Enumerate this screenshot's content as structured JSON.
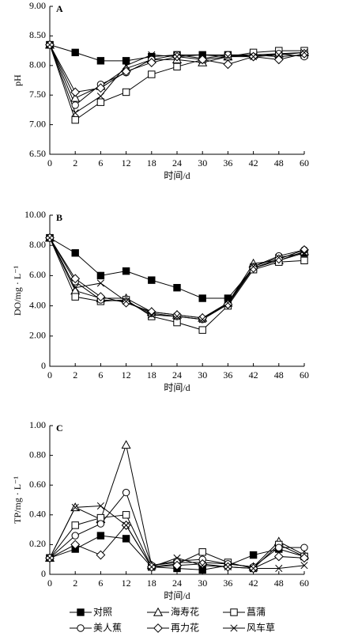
{
  "legend": [
    {
      "name": "对照",
      "marker": "square-filled"
    },
    {
      "name": "海寿花",
      "marker": "triangle"
    },
    {
      "name": "菖蒲",
      "marker": "square"
    },
    {
      "name": "美人蕉",
      "marker": "circle"
    },
    {
      "name": "再力花",
      "marker": "diamond"
    },
    {
      "name": "风车草",
      "marker": "cross"
    }
  ],
  "chart_data": [
    {
      "type": "line",
      "label": "A",
      "y_label": "pH",
      "x_label": "时间/d",
      "categories": [
        "0",
        "2",
        "6",
        "12",
        "18",
        "24",
        "30",
        "36",
        "42",
        "48",
        "60"
      ],
      "ylim": [
        6.5,
        9.0
      ],
      "yticks": [
        {
          "value": 6.5,
          "label": "6.50"
        },
        {
          "value": 7,
          "label": "7.00"
        },
        {
          "value": 7.5,
          "label": "7.50"
        },
        {
          "value": 8,
          "label": "8.00"
        },
        {
          "value": 8.5,
          "label": "8.50"
        },
        {
          "value": 9,
          "label": "9.00"
        }
      ],
      "series": [
        {
          "values": [
            8.35,
            8.22,
            8.08,
            8.08,
            8.15,
            8.18,
            8.18,
            8.18,
            8.18,
            8.15,
            8.18
          ]
        },
        {
          "values": [
            8.35,
            7.45,
            7.65,
            7.95,
            8.1,
            8.1,
            8.05,
            8.15,
            8.18,
            8.2,
            8.22
          ]
        },
        {
          "values": [
            8.35,
            7.08,
            7.38,
            7.55,
            7.85,
            7.98,
            8.1,
            8.15,
            8.22,
            8.25,
            8.25
          ]
        },
        {
          "values": [
            8.35,
            7.33,
            7.68,
            7.88,
            8.1,
            8.18,
            8.12,
            8.18,
            8.15,
            8.2,
            8.15
          ]
        },
        {
          "values": [
            8.35,
            7.55,
            7.62,
            7.9,
            8.05,
            8.15,
            8.1,
            8.02,
            8.15,
            8.1,
            8.2
          ]
        },
        {
          "values": [
            8.35,
            7.2,
            7.48,
            8.0,
            8.18,
            8.15,
            8.18,
            8.15,
            8.15,
            8.18,
            8.22
          ]
        }
      ]
    },
    {
      "type": "line",
      "label": "B",
      "y_label": "DO/mg · L⁻¹",
      "x_label": "时间/d",
      "categories": [
        "0",
        "2",
        "6",
        "12",
        "18",
        "24",
        "30",
        "36",
        "42",
        "48",
        "60"
      ],
      "ylim": [
        0,
        10
      ],
      "yticks": [
        0,
        {
          "value": 2,
          "label": "2.00"
        },
        {
          "value": 4,
          "label": "4.00"
        },
        {
          "value": 6,
          "label": "6.00"
        },
        {
          "value": 8,
          "label": "8.00"
        },
        {
          "value": 10,
          "label": "10.00"
        }
      ],
      "series": [
        {
          "values": [
            8.5,
            7.5,
            6.0,
            6.3,
            5.7,
            5.2,
            4.5,
            4.5,
            6.5,
            7.0,
            7.5
          ]
        },
        {
          "values": [
            8.5,
            5.0,
            4.5,
            4.5,
            3.6,
            3.4,
            3.2,
            4.2,
            6.8,
            7.0,
            7.6
          ]
        },
        {
          "values": [
            8.5,
            4.6,
            4.3,
            4.4,
            3.3,
            2.9,
            2.4,
            4.0,
            6.4,
            6.9,
            7.0
          ]
        },
        {
          "values": [
            8.5,
            5.6,
            4.4,
            4.3,
            3.5,
            3.3,
            3.1,
            4.1,
            6.6,
            7.3,
            7.7
          ]
        },
        {
          "values": [
            8.5,
            5.8,
            4.6,
            4.2,
            3.6,
            3.4,
            3.2,
            4.1,
            6.5,
            7.1,
            7.7
          ]
        },
        {
          "values": [
            8.5,
            5.2,
            5.5,
            4.3,
            3.4,
            3.3,
            3.1,
            4.2,
            6.6,
            7.2,
            7.5
          ]
        }
      ]
    },
    {
      "type": "line",
      "label": "C",
      "y_label": "TP/mg · L⁻¹",
      "x_label": "时间/d",
      "categories": [
        "0",
        "2",
        "6",
        "12",
        "18",
        "24",
        "30",
        "36",
        "42",
        "48",
        "60"
      ],
      "ylim": [
        0,
        1.0
      ],
      "yticks": [
        0,
        {
          "value": 0.2,
          "label": "0.20"
        },
        {
          "value": 0.4,
          "label": "0.40"
        },
        {
          "value": 0.6,
          "label": "0.60"
        },
        {
          "value": 0.8,
          "label": "0.80"
        },
        {
          "value": 1,
          "label": "1.00"
        }
      ],
      "series": [
        {
          "values": [
            0.11,
            0.17,
            0.26,
            0.24,
            0.05,
            0.04,
            0.03,
            0.06,
            0.13,
            0.17,
            0.12
          ]
        },
        {
          "values": [
            0.11,
            0.45,
            0.37,
            0.87,
            0.06,
            0.08,
            0.08,
            0.07,
            0.05,
            0.22,
            0.13
          ]
        },
        {
          "values": [
            0.11,
            0.33,
            0.38,
            0.4,
            0.05,
            0.07,
            0.15,
            0.08,
            0.04,
            0.2,
            0.12
          ]
        },
        {
          "values": [
            0.11,
            0.26,
            0.34,
            0.55,
            0.06,
            0.09,
            0.1,
            0.07,
            0.05,
            0.18,
            0.18
          ]
        },
        {
          "values": [
            0.11,
            0.2,
            0.13,
            0.33,
            0.05,
            0.06,
            0.07,
            0.05,
            0.04,
            0.12,
            0.11
          ]
        },
        {
          "values": [
            0.11,
            0.45,
            0.46,
            0.33,
            0.05,
            0.11,
            0.06,
            0.05,
            0.04,
            0.04,
            0.06
          ]
        }
      ]
    }
  ]
}
